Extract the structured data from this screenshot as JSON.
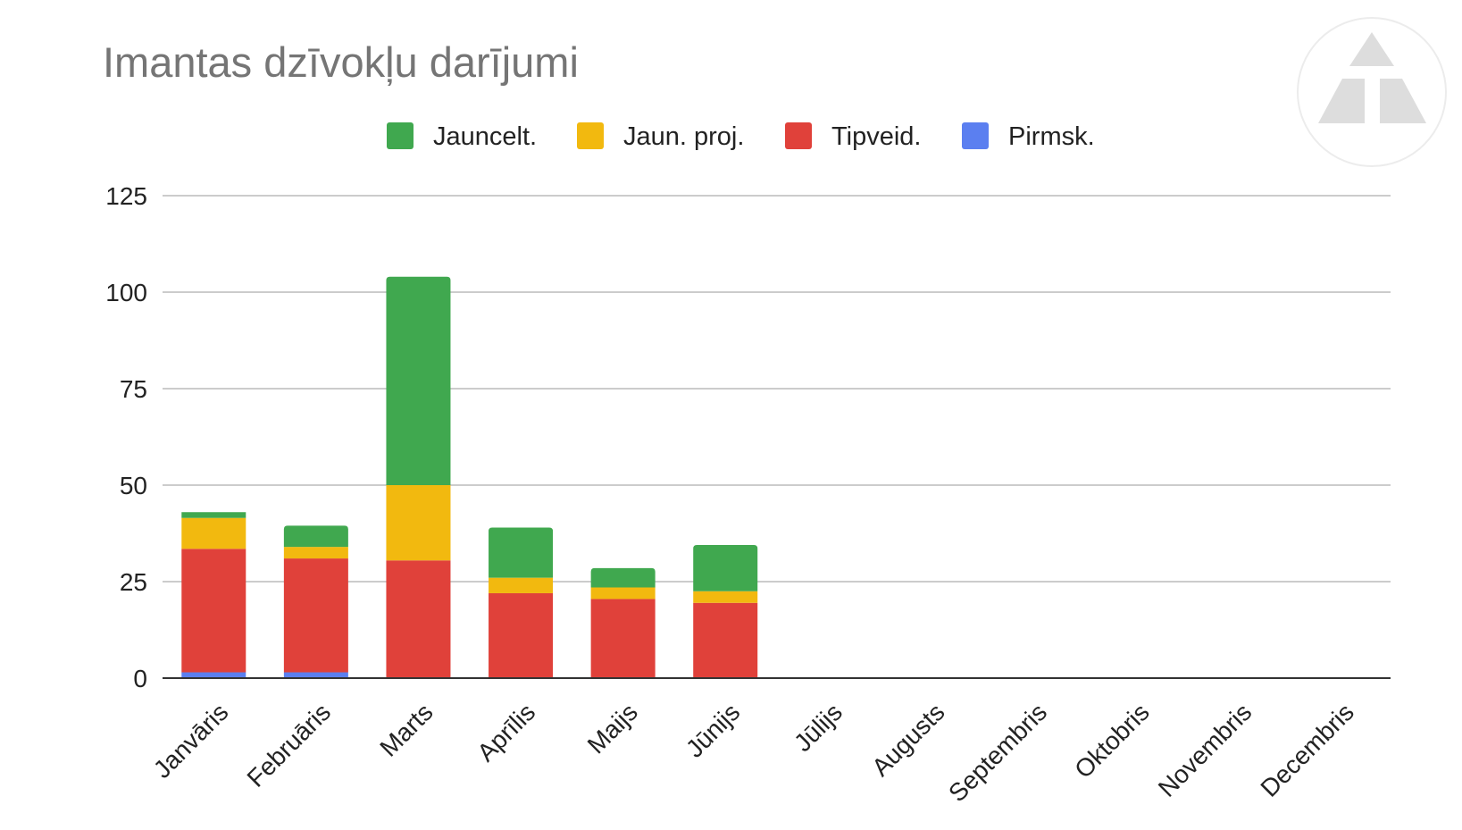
{
  "chart_data": {
    "type": "bar",
    "stacked": true,
    "title": "Imantas dzīvokļu darījumi",
    "xlabel": "",
    "ylabel": "",
    "ylim": [
      0,
      125
    ],
    "yticks": [
      0,
      25,
      50,
      75,
      100,
      125
    ],
    "grid": true,
    "legend_position": "top",
    "categories": [
      "Janvāris",
      "Februāris",
      "Marts",
      "Aprīlis",
      "Maijs",
      "Jūnijs",
      "Jūlijs",
      "Augusts",
      "Septembris",
      "Oktobris",
      "Novembris",
      "Decembris"
    ],
    "series": [
      {
        "name": "Pirmsk.",
        "color": "#5b7ff0",
        "values": [
          1.5,
          1.5,
          0,
          0,
          0,
          0,
          0,
          0,
          0,
          0,
          0,
          0
        ]
      },
      {
        "name": "Tipveid.",
        "color": "#e0413a",
        "values": [
          32,
          29.5,
          30.5,
          22,
          20.5,
          19.5,
          0,
          0,
          0,
          0,
          0,
          0
        ]
      },
      {
        "name": "Jaun. proj.",
        "color": "#f2b90f",
        "values": [
          8,
          3,
          19.5,
          4,
          3,
          3,
          0,
          0,
          0,
          0,
          0,
          0
        ]
      },
      {
        "name": "Jauncelt.",
        "color": "#40a84f",
        "values": [
          1.5,
          5.5,
          54,
          13,
          5,
          12,
          0,
          0,
          0,
          0,
          0,
          0
        ]
      }
    ],
    "legend_order": [
      "Jauncelt.",
      "Jaun. proj.",
      "Tipveid.",
      "Pirmsk."
    ]
  }
}
